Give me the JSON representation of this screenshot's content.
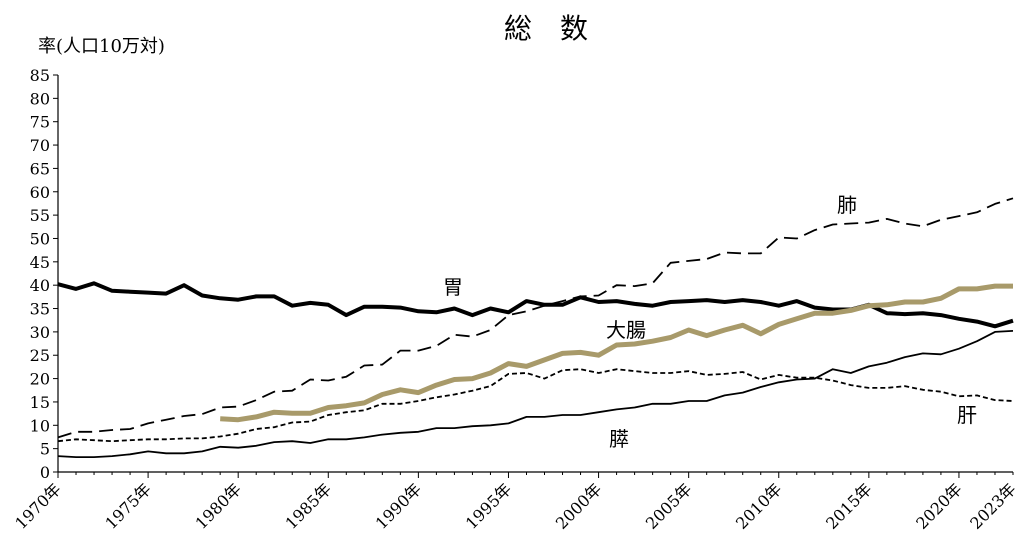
{
  "chart_data": {
    "type": "line",
    "title": "総数",
    "ylabel": "率(人口10万対)",
    "ylim": [
      0,
      85
    ],
    "yticks": [
      0,
      5,
      10,
      15,
      20,
      25,
      30,
      35,
      40,
      45,
      50,
      55,
      60,
      65,
      70,
      75,
      80,
      85
    ],
    "xlim": [
      1970,
      2023
    ],
    "xtick_values": [
      1970,
      1975,
      1980,
      1985,
      1990,
      1995,
      2000,
      2005,
      2010,
      2015,
      2020,
      2023
    ],
    "xtick_labels": [
      "1970年",
      "1975年",
      "1980年",
      "1985年",
      "1990年",
      "1995年",
      "2000年",
      "2005年",
      "2010年",
      "2015年",
      "2020年",
      "2023年"
    ],
    "grid": false,
    "colors": {
      "axis": "#000000",
      "colorectal": "#a89a6a",
      "default": "#000000"
    },
    "series": [
      {
        "name": "胃",
        "key": "stomach",
        "style": "thick-solid",
        "x": [
          1970,
          1971,
          1972,
          1973,
          1974,
          1975,
          1976,
          1977,
          1978,
          1979,
          1980,
          1981,
          1982,
          1983,
          1984,
          1985,
          1986,
          1987,
          1988,
          1989,
          1990,
          1991,
          1992,
          1993,
          1994,
          1995,
          1996,
          1997,
          1998,
          1999,
          2000,
          2001,
          2002,
          2003,
          2004,
          2005,
          2006,
          2007,
          2008,
          2009,
          2010,
          2011,
          2012,
          2013,
          2014,
          2015,
          2016,
          2017,
          2018,
          2019,
          2020,
          2021,
          2022,
          2023
        ],
        "values": [
          40.2,
          39.2,
          40.4,
          38.8,
          38.6,
          38.4,
          38.2,
          40.0,
          37.8,
          37.2,
          36.9,
          37.6,
          37.6,
          35.6,
          36.2,
          35.8,
          33.6,
          35.4,
          35.4,
          35.2,
          34.4,
          34.2,
          35.0,
          33.6,
          35.0,
          34.2,
          36.6,
          35.8,
          35.8,
          37.4,
          36.4,
          36.6,
          36.0,
          35.6,
          36.4,
          36.6,
          36.8,
          36.4,
          36.8,
          36.4,
          35.6,
          36.6,
          35.2,
          34.8,
          34.8,
          35.8,
          34.0,
          33.8,
          34.0,
          33.6,
          32.8,
          32.2,
          31.2,
          32.4
        ]
      },
      {
        "name": "肺",
        "key": "lung",
        "style": "dashed",
        "x": [
          1970,
          1971,
          1972,
          1973,
          1974,
          1975,
          1976,
          1977,
          1978,
          1979,
          1980,
          1981,
          1982,
          1983,
          1984,
          1985,
          1986,
          1987,
          1988,
          1989,
          1990,
          1991,
          1992,
          1993,
          1994,
          1995,
          1996,
          1997,
          1998,
          1999,
          2000,
          2001,
          2002,
          2003,
          2004,
          2005,
          2006,
          2007,
          2008,
          2009,
          2010,
          2011,
          2012,
          2013,
          2014,
          2015,
          2016,
          2017,
          2018,
          2019,
          2020,
          2021,
          2022,
          2023
        ],
        "values": [
          7.4,
          8.6,
          8.6,
          9.0,
          9.2,
          10.4,
          11.2,
          12.0,
          12.4,
          13.8,
          14.0,
          15.4,
          17.2,
          17.4,
          19.8,
          19.6,
          20.4,
          22.8,
          23.0,
          26.0,
          26.0,
          27.0,
          29.4,
          29.0,
          30.4,
          33.6,
          34.4,
          35.6,
          36.6,
          37.6,
          37.8,
          40.0,
          39.8,
          40.4,
          44.8,
          45.2,
          45.6,
          47.0,
          46.8,
          46.8,
          50.2,
          50.0,
          51.8,
          53.0,
          53.2,
          53.4,
          54.2,
          53.2,
          52.6,
          54.0,
          54.8,
          55.6,
          57.4,
          58.6
        ]
      },
      {
        "name": "大腸",
        "key": "colorectal",
        "style": "thick-colored",
        "x": [
          1979,
          1980,
          1981,
          1982,
          1983,
          1984,
          1985,
          1986,
          1987,
          1988,
          1989,
          1990,
          1991,
          1992,
          1993,
          1994,
          1995,
          1996,
          1997,
          1998,
          1999,
          2000,
          2001,
          2002,
          2003,
          2004,
          2005,
          2006,
          2007,
          2008,
          2009,
          2010,
          2011,
          2012,
          2013,
          2014,
          2015,
          2016,
          2017,
          2018,
          2019,
          2020,
          2021,
          2022,
          2023
        ],
        "values": [
          11.4,
          11.2,
          11.8,
          12.8,
          12.6,
          12.6,
          13.8,
          14.2,
          14.8,
          16.6,
          17.6,
          17.0,
          18.6,
          19.8,
          20.0,
          21.2,
          23.2,
          22.6,
          24.0,
          25.4,
          25.6,
          25.0,
          27.2,
          27.4,
          28.0,
          28.8,
          30.4,
          29.2,
          30.4,
          31.4,
          29.6,
          31.6,
          32.8,
          34.0,
          34.0,
          34.6,
          35.6,
          35.8,
          36.4,
          36.4,
          37.2,
          39.2,
          39.2,
          39.8,
          39.8
        ]
      },
      {
        "name": "肝",
        "key": "liver",
        "style": "short-dashed",
        "x": [
          1970,
          1971,
          1972,
          1973,
          1974,
          1975,
          1976,
          1977,
          1978,
          1979,
          1980,
          1981,
          1982,
          1983,
          1984,
          1985,
          1986,
          1987,
          1988,
          1989,
          1990,
          1991,
          1992,
          1993,
          1994,
          1995,
          1996,
          1997,
          1998,
          1999,
          2000,
          2001,
          2002,
          2003,
          2004,
          2005,
          2006,
          2007,
          2008,
          2009,
          2010,
          2011,
          2012,
          2013,
          2014,
          2015,
          2016,
          2017,
          2018,
          2019,
          2020,
          2021,
          2022,
          2023
        ],
        "values": [
          6.6,
          7.0,
          6.8,
          6.6,
          6.8,
          7.0,
          7.0,
          7.2,
          7.2,
          7.6,
          8.2,
          9.2,
          9.6,
          10.6,
          10.8,
          12.2,
          12.8,
          13.2,
          14.6,
          14.6,
          15.2,
          16.0,
          16.6,
          17.4,
          18.4,
          21.0,
          21.2,
          20.0,
          21.8,
          22.0,
          21.2,
          22.0,
          21.6,
          21.2,
          21.2,
          21.6,
          20.8,
          21.0,
          21.4,
          19.8,
          20.8,
          20.2,
          20.2,
          19.6,
          18.6,
          18.0,
          18.0,
          18.4,
          17.6,
          17.2,
          16.2,
          16.4,
          15.4,
          15.2
        ]
      },
      {
        "name": "膵",
        "key": "pancreas",
        "style": "thin-solid",
        "x": [
          1970,
          1971,
          1972,
          1973,
          1974,
          1975,
          1976,
          1977,
          1978,
          1979,
          1980,
          1981,
          1982,
          1983,
          1984,
          1985,
          1986,
          1987,
          1988,
          1989,
          1990,
          1991,
          1992,
          1993,
          1994,
          1995,
          1996,
          1997,
          1998,
          1999,
          2000,
          2001,
          2002,
          2003,
          2004,
          2005,
          2006,
          2007,
          2008,
          2009,
          2010,
          2011,
          2012,
          2013,
          2014,
          2015,
          2016,
          2017,
          2018,
          2019,
          2020,
          2021,
          2022,
          2023
        ],
        "values": [
          3.4,
          3.2,
          3.2,
          3.4,
          3.8,
          4.4,
          4.0,
          4.0,
          4.4,
          5.4,
          5.2,
          5.6,
          6.4,
          6.6,
          6.2,
          7.0,
          7.0,
          7.4,
          8.0,
          8.4,
          8.6,
          9.4,
          9.4,
          9.8,
          10.0,
          10.4,
          11.8,
          11.8,
          12.2,
          12.2,
          12.8,
          13.4,
          13.8,
          14.6,
          14.6,
          15.2,
          15.2,
          16.4,
          17.0,
          18.2,
          19.2,
          19.8,
          20.0,
          22.0,
          21.2,
          22.6,
          23.4,
          24.6,
          25.4,
          25.2,
          26.4,
          28.0,
          30.0,
          30.2
        ]
      }
    ]
  }
}
